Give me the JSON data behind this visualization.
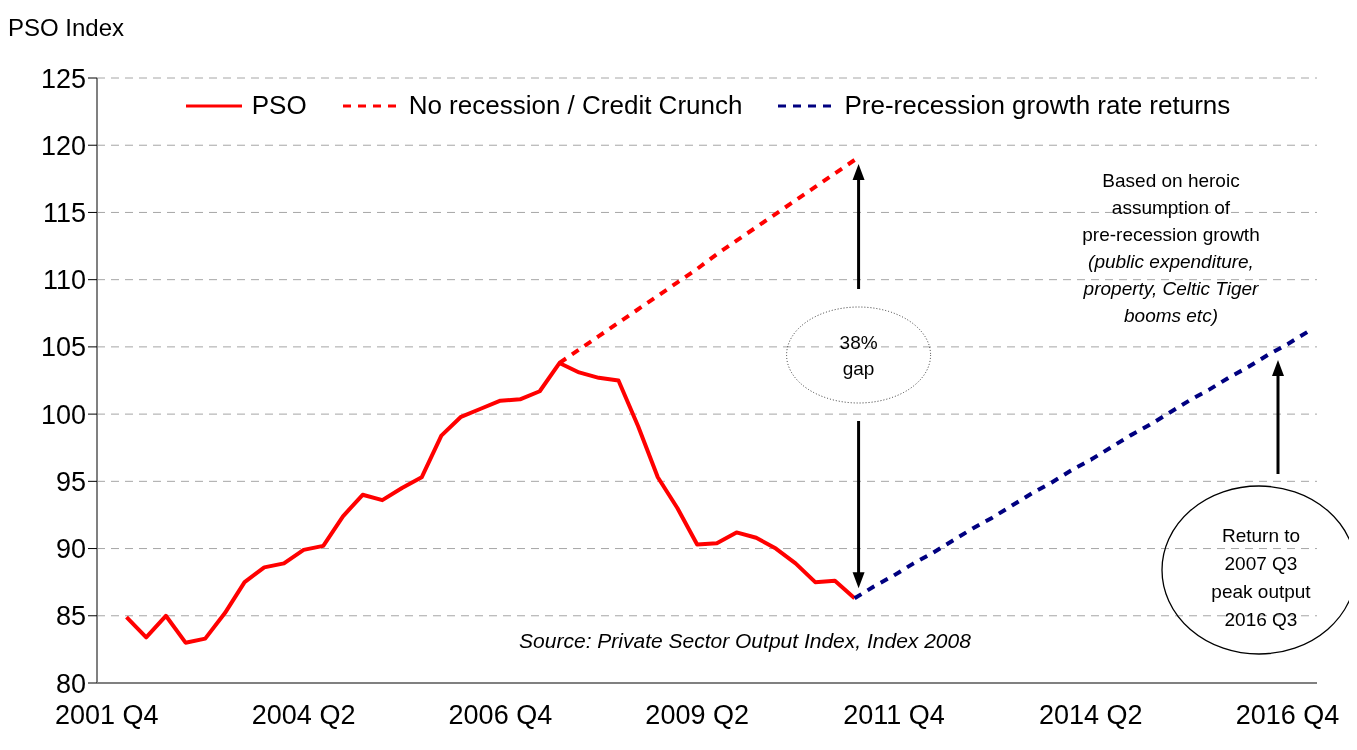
{
  "chart_data": {
    "type": "line",
    "ylabel": "PSO Index",
    "categories": [
      "2001 Q4",
      null,
      null,
      null,
      null,
      null,
      null,
      null,
      null,
      null,
      "2004 Q2",
      null,
      null,
      null,
      null,
      null,
      null,
      null,
      null,
      null,
      "2006 Q4",
      null,
      null,
      null,
      null,
      null,
      null,
      null,
      null,
      null,
      "2009 Q2",
      null,
      null,
      null,
      null,
      null,
      null,
      null,
      null,
      null,
      "2011 Q4",
      null,
      null,
      null,
      null,
      null,
      null,
      null,
      null,
      null,
      "2014 Q2",
      null,
      null,
      null,
      null,
      null,
      null,
      null,
      null,
      null,
      "2016 Q4",
      null
    ],
    "ylim": [
      80,
      125
    ],
    "yticks": [
      80,
      85,
      90,
      95,
      100,
      105,
      110,
      115,
      120,
      125
    ],
    "grid": "y",
    "legend": "top",
    "marker": "none",
    "series": [
      {
        "name": "PSO",
        "color": "#ff0000",
        "line_style": "solid",
        "values": [
          null,
          84.9,
          83.4,
          85.0,
          83.0,
          83.3,
          85.2,
          87.5,
          88.6,
          88.9,
          89.9,
          90.2,
          92.4,
          94.0,
          93.6,
          94.5,
          95.3,
          98.4,
          99.8,
          100.4,
          101.0,
          101.1,
          101.7,
          103.8,
          103.1,
          102.7,
          102.5,
          99.1,
          95.3,
          93.0,
          90.3,
          90.4,
          91.2,
          90.8,
          90.0,
          88.9,
          87.5,
          87.6,
          86.3,
          null,
          null,
          null,
          null,
          null,
          null,
          null,
          null,
          null,
          null,
          null,
          null,
          null,
          null,
          null,
          null,
          null,
          null,
          null,
          null,
          null,
          null,
          null
        ]
      },
      {
        "name": "No recession / Credit Crunch",
        "color": "#ff0000",
        "line_style": "dashed",
        "values": [
          null,
          null,
          null,
          null,
          null,
          null,
          null,
          null,
          null,
          null,
          null,
          null,
          null,
          null,
          null,
          null,
          null,
          null,
          null,
          null,
          null,
          null,
          null,
          103.8,
          104.8,
          105.8,
          106.8,
          107.8,
          108.8,
          109.8,
          110.8,
          111.9,
          112.9,
          113.9,
          114.9,
          115.9,
          116.9,
          117.9,
          118.9,
          null,
          null,
          null,
          null,
          null,
          null,
          null,
          null,
          null,
          null,
          null,
          null,
          null,
          null,
          null,
          null,
          null,
          null,
          null,
          null,
          null,
          null,
          null
        ]
      },
      {
        "name": "Pre-recession growth rate returns",
        "color": "#000080",
        "line_style": "dashed",
        "values": [
          null,
          null,
          null,
          null,
          null,
          null,
          null,
          null,
          null,
          null,
          null,
          null,
          null,
          null,
          null,
          null,
          null,
          null,
          null,
          null,
          null,
          null,
          null,
          null,
          null,
          null,
          null,
          null,
          null,
          null,
          null,
          null,
          null,
          null,
          null,
          null,
          null,
          null,
          86.3,
          87.2,
          88.0,
          88.9,
          89.7,
          90.6,
          91.5,
          92.3,
          93.2,
          94.1,
          94.9,
          95.8,
          96.6,
          97.5,
          98.4,
          99.2,
          100.1,
          101.0,
          101.8,
          102.7,
          103.5,
          104.4,
          105.2,
          106.1
        ]
      }
    ],
    "annotations": [
      "38% gap",
      "Based on heroic assumption of pre-recession growth (public expenditure, property, Celtic Tiger booms etc)",
      "Return to 2007 Q3 peak output 2016 Q3",
      "Source: Private Sector Output Index, Index 2008"
    ]
  }
}
